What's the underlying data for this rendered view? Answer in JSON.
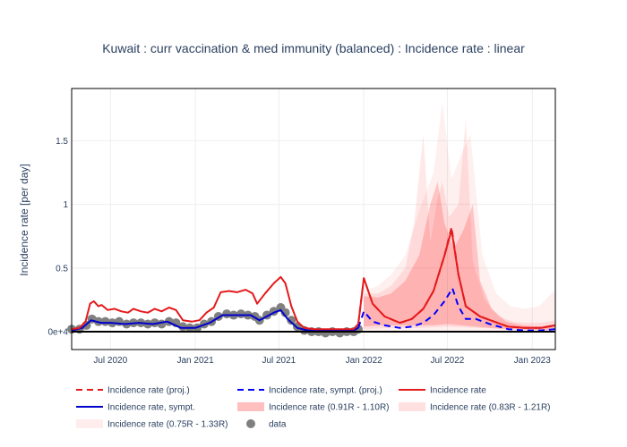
{
  "chart_data": {
    "type": "line",
    "title": "Kuwait : curr vaccination & med immunity (balanced) : Incidence rate : linear",
    "xlabel": "",
    "ylabel": "Incidence rate [per day]",
    "ylim": [
      -0.14,
      1.91
    ],
    "xlim": [
      "2020-04-08",
      "2023-02-20"
    ],
    "grid": true,
    "legend_position": "bottom",
    "x_ticks": [
      {
        "date": "2020-07-01",
        "label": "Jul 2020"
      },
      {
        "date": "2021-01-01",
        "label": "Jan 2021"
      },
      {
        "date": "2021-07-01",
        "label": "Jul 2021"
      },
      {
        "date": "2022-01-01",
        "label": "Jan 2022"
      },
      {
        "date": "2022-07-01",
        "label": "Jul 2022"
      },
      {
        "date": "2023-01-01",
        "label": "Jan 2023"
      }
    ],
    "y_ticks": [
      {
        "value": 0,
        "label": "0e+4"
      },
      {
        "value": 0.5,
        "label": "0.5"
      },
      {
        "value": 1,
        "label": "1"
      },
      {
        "value": 1.5,
        "label": "1.5"
      }
    ],
    "series": [
      {
        "name": "Incidence rate",
        "style": "solid",
        "color": "#e41a1c",
        "points": [
          [
            "2020-04-08",
            0.02
          ],
          [
            "2020-04-25",
            0.03
          ],
          [
            "2020-05-08",
            0.08
          ],
          [
            "2020-05-18",
            0.22
          ],
          [
            "2020-05-26",
            0.24
          ],
          [
            "2020-06-05",
            0.2
          ],
          [
            "2020-06-12",
            0.21
          ],
          [
            "2020-06-25",
            0.17
          ],
          [
            "2020-07-10",
            0.18
          ],
          [
            "2020-07-25",
            0.16
          ],
          [
            "2020-08-08",
            0.15
          ],
          [
            "2020-08-20",
            0.18
          ],
          [
            "2020-09-05",
            0.16
          ],
          [
            "2020-09-20",
            0.15
          ],
          [
            "2020-10-05",
            0.18
          ],
          [
            "2020-10-20",
            0.16
          ],
          [
            "2020-11-05",
            0.19
          ],
          [
            "2020-11-20",
            0.17
          ],
          [
            "2020-12-05",
            0.09
          ],
          [
            "2020-12-25",
            0.08
          ],
          [
            "2021-01-10",
            0.09
          ],
          [
            "2021-01-25",
            0.15
          ],
          [
            "2021-02-10",
            0.19
          ],
          [
            "2021-02-25",
            0.31
          ],
          [
            "2021-03-15",
            0.32
          ],
          [
            "2021-04-01",
            0.31
          ],
          [
            "2021-04-20",
            0.33
          ],
          [
            "2021-05-05",
            0.3
          ],
          [
            "2021-05-15",
            0.22
          ],
          [
            "2021-06-01",
            0.3
          ],
          [
            "2021-06-20",
            0.38
          ],
          [
            "2021-07-05",
            0.43
          ],
          [
            "2021-07-15",
            0.38
          ],
          [
            "2021-07-28",
            0.2
          ],
          [
            "2021-08-10",
            0.08
          ],
          [
            "2021-08-25",
            0.03
          ],
          [
            "2021-09-15",
            0.02
          ],
          [
            "2021-11-01",
            0.02
          ],
          [
            "2021-12-10",
            0.02
          ],
          [
            "2021-12-20",
            0.06
          ],
          [
            "2022-01-01",
            0.42
          ],
          [
            "2022-01-20",
            0.22
          ],
          [
            "2022-02-15",
            0.12
          ],
          [
            "2022-03-20",
            0.07
          ],
          [
            "2022-04-15",
            0.1
          ],
          [
            "2022-05-10",
            0.18
          ],
          [
            "2022-06-01",
            0.32
          ],
          [
            "2022-06-25",
            0.6
          ],
          [
            "2022-07-10",
            0.8
          ],
          [
            "2022-07-25",
            0.45
          ],
          [
            "2022-08-10",
            0.2
          ],
          [
            "2022-09-10",
            0.12
          ],
          [
            "2022-10-10",
            0.08
          ],
          [
            "2022-11-10",
            0.04
          ],
          [
            "2022-12-15",
            0.03
          ],
          [
            "2023-01-20",
            0.03
          ],
          [
            "2023-02-20",
            0.05
          ]
        ]
      },
      {
        "name": "Incidence rate, sympt.",
        "style": "solid",
        "color": "#0000cc",
        "points": [
          [
            "2020-04-08",
            0.01
          ],
          [
            "2020-05-01",
            0.03
          ],
          [
            "2020-05-20",
            0.09
          ],
          [
            "2020-06-10",
            0.07
          ],
          [
            "2020-07-01",
            0.07
          ],
          [
            "2020-08-01",
            0.06
          ],
          [
            "2020-09-01",
            0.07
          ],
          [
            "2020-10-01",
            0.06
          ],
          [
            "2020-11-01",
            0.08
          ],
          [
            "2020-12-01",
            0.03
          ],
          [
            "2021-01-01",
            0.03
          ],
          [
            "2021-02-01",
            0.07
          ],
          [
            "2021-03-01",
            0.13
          ],
          [
            "2021-04-01",
            0.13
          ],
          [
            "2021-05-01",
            0.13
          ],
          [
            "2021-05-20",
            0.09
          ],
          [
            "2021-06-20",
            0.15
          ],
          [
            "2021-07-05",
            0.17
          ],
          [
            "2021-07-20",
            0.1
          ],
          [
            "2021-08-10",
            0.03
          ],
          [
            "2021-09-01",
            0.01
          ],
          [
            "2021-12-10",
            0.01
          ],
          [
            "2021-12-20",
            0.03
          ]
        ]
      },
      {
        "name": "Incidence rate (proj.)",
        "style": "dash",
        "color": "#e41a1c",
        "points": [
          [
            "2021-12-20",
            0.06
          ],
          [
            "2022-01-01",
            0.42
          ],
          [
            "2022-01-20",
            0.22
          ],
          [
            "2022-02-15",
            0.12
          ],
          [
            "2022-03-20",
            0.07
          ],
          [
            "2022-04-15",
            0.1
          ],
          [
            "2022-05-10",
            0.18
          ],
          [
            "2022-06-01",
            0.32
          ],
          [
            "2022-06-25",
            0.6
          ],
          [
            "2022-07-10",
            0.82
          ],
          [
            "2022-07-25",
            0.45
          ],
          [
            "2022-08-10",
            0.2
          ],
          [
            "2022-09-10",
            0.12
          ],
          [
            "2022-10-10",
            0.08
          ],
          [
            "2022-11-10",
            0.04
          ],
          [
            "2022-12-15",
            0.03
          ],
          [
            "2023-01-20",
            0.03
          ],
          [
            "2023-02-20",
            0.05
          ]
        ]
      },
      {
        "name": "Incidence rate, sympt. (proj.)",
        "style": "dash",
        "color": "#0000ff",
        "points": [
          [
            "2021-12-20",
            0.03
          ],
          [
            "2022-01-01",
            0.16
          ],
          [
            "2022-01-20",
            0.08
          ],
          [
            "2022-02-15",
            0.05
          ],
          [
            "2022-03-20",
            0.03
          ],
          [
            "2022-04-15",
            0.04
          ],
          [
            "2022-05-10",
            0.07
          ],
          [
            "2022-06-01",
            0.13
          ],
          [
            "2022-06-25",
            0.24
          ],
          [
            "2022-07-12",
            0.34
          ],
          [
            "2022-07-25",
            0.2
          ],
          [
            "2022-08-10",
            0.1
          ],
          [
            "2022-09-01",
            0.1
          ],
          [
            "2022-10-01",
            0.06
          ],
          [
            "2022-11-10",
            0.02
          ],
          [
            "2022-12-15",
            0.01
          ],
          [
            "2023-01-20",
            0.01
          ],
          [
            "2023-02-20",
            0.02
          ]
        ]
      }
    ],
    "bands": [
      {
        "name": "Incidence rate (0.75R - 1.33R)",
        "color": "#ff0000",
        "opacity": 0.06,
        "upper": [
          [
            "2022-01-01",
            0.32
          ],
          [
            "2022-02-01",
            0.36
          ],
          [
            "2022-03-01",
            0.45
          ],
          [
            "2022-04-01",
            0.6
          ],
          [
            "2022-05-01",
            0.95
          ],
          [
            "2022-06-01",
            1.25
          ],
          [
            "2022-06-20",
            1.8
          ],
          [
            "2022-07-10",
            1.2
          ],
          [
            "2022-08-01",
            1.4
          ],
          [
            "2022-08-20",
            1.55
          ],
          [
            "2022-09-15",
            0.6
          ],
          [
            "2022-10-15",
            0.3
          ],
          [
            "2022-11-15",
            0.2
          ],
          [
            "2022-12-15",
            0.18
          ],
          [
            "2023-01-15",
            0.2
          ],
          [
            "2023-02-20",
            0.33
          ]
        ],
        "lower": [
          [
            "2022-01-01",
            0.0
          ],
          [
            "2023-02-20",
            0.0
          ]
        ]
      },
      {
        "name": "Incidence rate (0.83R - 1.21R)",
        "color": "#ff0000",
        "opacity": 0.09,
        "upper": [
          [
            "2022-01-01",
            0.3
          ],
          [
            "2022-02-01",
            0.3
          ],
          [
            "2022-03-01",
            0.36
          ],
          [
            "2022-04-01",
            0.5
          ],
          [
            "2022-04-20",
            0.85
          ],
          [
            "2022-05-10",
            1.55
          ],
          [
            "2022-05-25",
            0.7
          ],
          [
            "2022-06-10",
            1.05
          ],
          [
            "2022-06-20",
            1.18
          ],
          [
            "2022-07-05",
            0.9
          ],
          [
            "2022-07-25",
            1.0
          ],
          [
            "2022-08-10",
            1.67
          ],
          [
            "2022-08-25",
            0.55
          ],
          [
            "2022-09-20",
            0.25
          ],
          [
            "2022-10-20",
            0.12
          ],
          [
            "2022-11-20",
            0.08
          ],
          [
            "2022-12-20",
            0.07
          ],
          [
            "2023-01-20",
            0.07
          ],
          [
            "2023-02-20",
            0.09
          ]
        ],
        "lower": [
          [
            "2022-01-01",
            0.02
          ],
          [
            "2022-03-01",
            0.03
          ],
          [
            "2022-05-01",
            0.03
          ],
          [
            "2022-07-01",
            0.04
          ],
          [
            "2022-09-01",
            0.03
          ],
          [
            "2023-02-20",
            0.01
          ]
        ]
      },
      {
        "name": "Incidence rate (0.91R - 1.10R)",
        "color": "#ff0000",
        "opacity": 0.18,
        "upper": [
          [
            "2022-01-01",
            0.28
          ],
          [
            "2022-02-01",
            0.27
          ],
          [
            "2022-03-01",
            0.3
          ],
          [
            "2022-04-01",
            0.4
          ],
          [
            "2022-05-01",
            0.6
          ],
          [
            "2022-05-25",
            1.0
          ],
          [
            "2022-06-10",
            1.18
          ],
          [
            "2022-06-25",
            0.85
          ],
          [
            "2022-07-15",
            0.65
          ],
          [
            "2022-08-05",
            0.8
          ],
          [
            "2022-08-25",
            1.0
          ],
          [
            "2022-09-10",
            0.4
          ],
          [
            "2022-10-05",
            0.18
          ],
          [
            "2022-11-05",
            0.08
          ],
          [
            "2022-12-10",
            0.05
          ],
          [
            "2023-01-15",
            0.04
          ],
          [
            "2023-02-20",
            0.06
          ]
        ],
        "lower": [
          [
            "2022-01-01",
            0.04
          ],
          [
            "2022-02-01",
            0.05
          ],
          [
            "2022-04-01",
            0.05
          ],
          [
            "2022-06-01",
            0.05
          ],
          [
            "2022-07-01",
            0.06
          ],
          [
            "2022-09-01",
            0.04
          ],
          [
            "2022-11-01",
            0.02
          ],
          [
            "2023-02-20",
            0.01
          ]
        ]
      }
    ],
    "markers": {
      "name": "data",
      "color": "#808080",
      "points": [
        [
          "2020-04-08",
          0.02
        ],
        [
          "2020-04-25",
          0.02
        ],
        [
          "2020-05-10",
          0.05
        ],
        [
          "2020-05-22",
          0.1
        ],
        [
          "2020-06-05",
          0.08
        ],
        [
          "2020-06-20",
          0.08
        ],
        [
          "2020-07-05",
          0.07
        ],
        [
          "2020-07-20",
          0.08
        ],
        [
          "2020-08-05",
          0.06
        ],
        [
          "2020-08-20",
          0.07
        ],
        [
          "2020-09-05",
          0.07
        ],
        [
          "2020-09-20",
          0.06
        ],
        [
          "2020-10-05",
          0.07
        ],
        [
          "2020-10-20",
          0.06
        ],
        [
          "2020-11-05",
          0.08
        ],
        [
          "2020-11-20",
          0.07
        ],
        [
          "2020-12-05",
          0.04
        ],
        [
          "2020-12-20",
          0.03
        ],
        [
          "2021-01-05",
          0.03
        ],
        [
          "2021-01-20",
          0.06
        ],
        [
          "2021-02-05",
          0.08
        ],
        [
          "2021-02-20",
          0.12
        ],
        [
          "2021-03-10",
          0.14
        ],
        [
          "2021-03-25",
          0.13
        ],
        [
          "2021-04-10",
          0.14
        ],
        [
          "2021-04-25",
          0.13
        ],
        [
          "2021-05-10",
          0.12
        ],
        [
          "2021-05-20",
          0.09
        ],
        [
          "2021-06-05",
          0.13
        ],
        [
          "2021-06-20",
          0.16
        ],
        [
          "2021-07-05",
          0.19
        ],
        [
          "2021-07-15",
          0.15
        ],
        [
          "2021-07-28",
          0.09
        ],
        [
          "2021-08-10",
          0.04
        ],
        [
          "2021-08-25",
          0.01
        ],
        [
          "2021-09-10",
          0.0
        ],
        [
          "2021-09-25",
          0.0
        ],
        [
          "2021-10-10",
          -0.01
        ],
        [
          "2021-10-25",
          0.0
        ],
        [
          "2021-11-10",
          -0.01
        ],
        [
          "2021-11-25",
          0.0
        ],
        [
          "2021-12-10",
          0.0
        ],
        [
          "2021-12-20",
          0.02
        ]
      ]
    },
    "legend": [
      {
        "key": "proj",
        "label": "Incidence rate (proj.)"
      },
      {
        "key": "symptproj",
        "label": "Incidence rate, sympt. (proj.)"
      },
      {
        "key": "rate",
        "label": "Incidence rate"
      },
      {
        "key": "sympt",
        "label": "Incidence rate, sympt."
      },
      {
        "key": "band91",
        "label": "Incidence rate (0.91R - 1.10R)"
      },
      {
        "key": "band83",
        "label": "Incidence rate (0.83R - 1.21R)"
      },
      {
        "key": "band75",
        "label": "Incidence rate (0.75R - 1.33R)"
      },
      {
        "key": "data",
        "label": "data"
      }
    ]
  }
}
